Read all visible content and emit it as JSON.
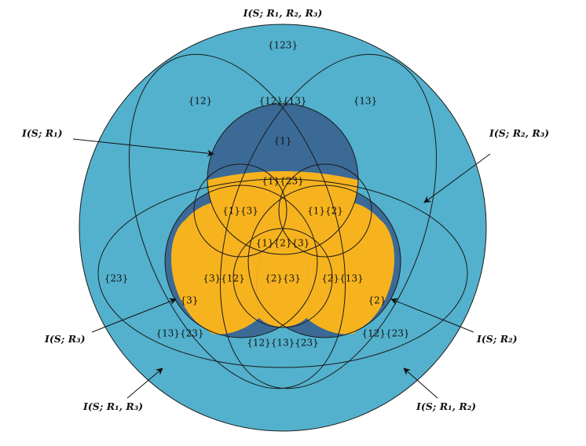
{
  "colors": {
    "outer": "#53b1cd",
    "dark": "#3c6a96",
    "yellow": "#f7b31e",
    "stroke": "#1a1a1a"
  },
  "labels": {
    "outer_total": "I(S; R₁, R₂, R₃)",
    "r1": "I(S; R₁)",
    "r2": "I(S; R₂)",
    "r3": "I(S; R₃)",
    "r1r2": "I(S; R₁, R₂)",
    "r1r3": "I(S; R₁, R₃)",
    "r2r3": "I(S; R₂, R₃)"
  },
  "atoms": {
    "a123": "{123}",
    "a12": "{12}",
    "a12_13": "{12}{13}",
    "a13": "{13}",
    "a1": "{1}",
    "a1_23": "{1}{23}",
    "a1_3": "{1}{3}",
    "a1_2": "{1}{2}",
    "a1_2_3": "{1}{2}{3}",
    "a23": "{23}",
    "a3_12": "{3}{12}",
    "a2_3": "{2}{3}",
    "a2_13": "{2}{13}",
    "a3": "{3}",
    "a2": "{2}",
    "a13_23": "{13}{23}",
    "a12_13_23": "{12}{13}{23}",
    "a12_23": "{12}{23}"
  }
}
